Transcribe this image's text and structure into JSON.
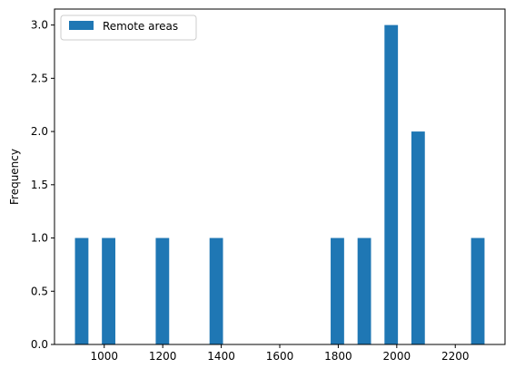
{
  "chart_data": {
    "type": "bar",
    "title": "",
    "xlabel": "",
    "ylabel": "Frequency",
    "xlim": [
      830,
      2370
    ],
    "ylim": [
      0,
      3.15
    ],
    "xticks": [
      1000,
      1200,
      1400,
      1600,
      1800,
      2000,
      2200
    ],
    "xtick_labels": [
      "1000",
      "1200",
      "1400",
      "1600",
      "1800",
      "2000",
      "2200"
    ],
    "yticks": [
      0.0,
      0.5,
      1.0,
      1.5,
      2.0,
      2.5,
      3.0
    ],
    "ytick_labels": [
      "0.0",
      "0.5",
      "1.0",
      "1.5",
      "2.0",
      "2.5",
      "3.0"
    ],
    "grid": false,
    "legend_position": "upper-left",
    "series": [
      {
        "name": "Remote areas",
        "color": "#1f77b4",
        "bars": [
          {
            "x0": 900,
            "x1": 946,
            "value": 1
          },
          {
            "x0": 992,
            "x1": 1038,
            "value": 1
          },
          {
            "x0": 1176,
            "x1": 1222,
            "value": 1
          },
          {
            "x0": 1360,
            "x1": 1406,
            "value": 1
          },
          {
            "x0": 1774,
            "x1": 1820,
            "value": 1
          },
          {
            "x0": 1866,
            "x1": 1912,
            "value": 1
          },
          {
            "x0": 1958,
            "x1": 2004,
            "value": 3
          },
          {
            "x0": 2050,
            "x1": 2096,
            "value": 2
          },
          {
            "x0": 2254,
            "x1": 2300,
            "value": 1
          }
        ]
      }
    ]
  }
}
